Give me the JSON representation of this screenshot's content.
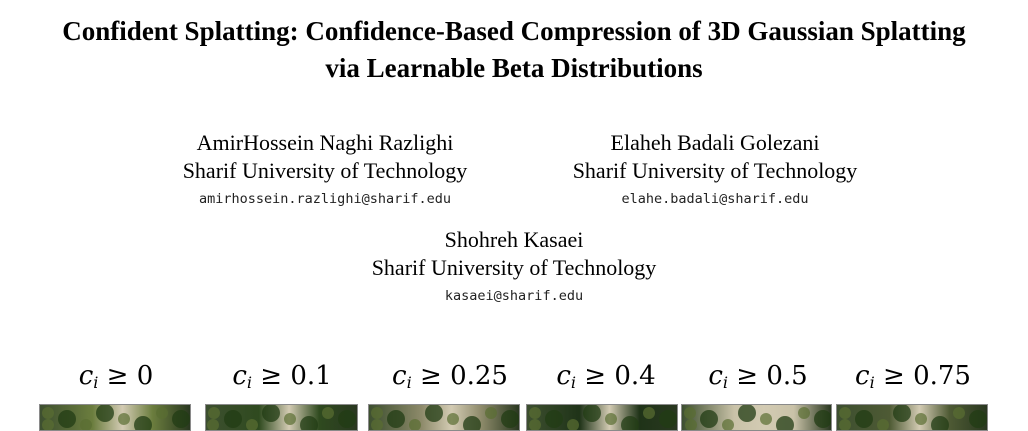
{
  "paper": {
    "title_line1": "Confident Splatting: Confidence-Based Compression of 3D Gaussian Splatting",
    "title_line2": "via Learnable Beta Distributions"
  },
  "authors": [
    {
      "name": "AmirHossein Naghi Razlighi",
      "affiliation": "Sharif University of Technology",
      "email": "amirhossein.razlighi@sharif.edu"
    },
    {
      "name": "Elaheh Badali Golezani",
      "affiliation": "Sharif University of Technology",
      "email": "elahe.badali@sharif.edu"
    },
    {
      "name": "Shohreh Kasaei",
      "affiliation": "Sharif University of Technology",
      "email": "kasaei@sharif.edu"
    }
  ],
  "teaser": {
    "symbol": "c",
    "subscript": "i",
    "operator": "≥",
    "thresholds": [
      "0",
      "0.1",
      "0.25",
      "0.4",
      "0.5",
      "0.75"
    ],
    "image_colors": [
      "#6b7d3e",
      "#2f4a1f",
      "#8d8a6a",
      "#1f3318",
      "#c9c2a8",
      "#4e5a34"
    ]
  }
}
